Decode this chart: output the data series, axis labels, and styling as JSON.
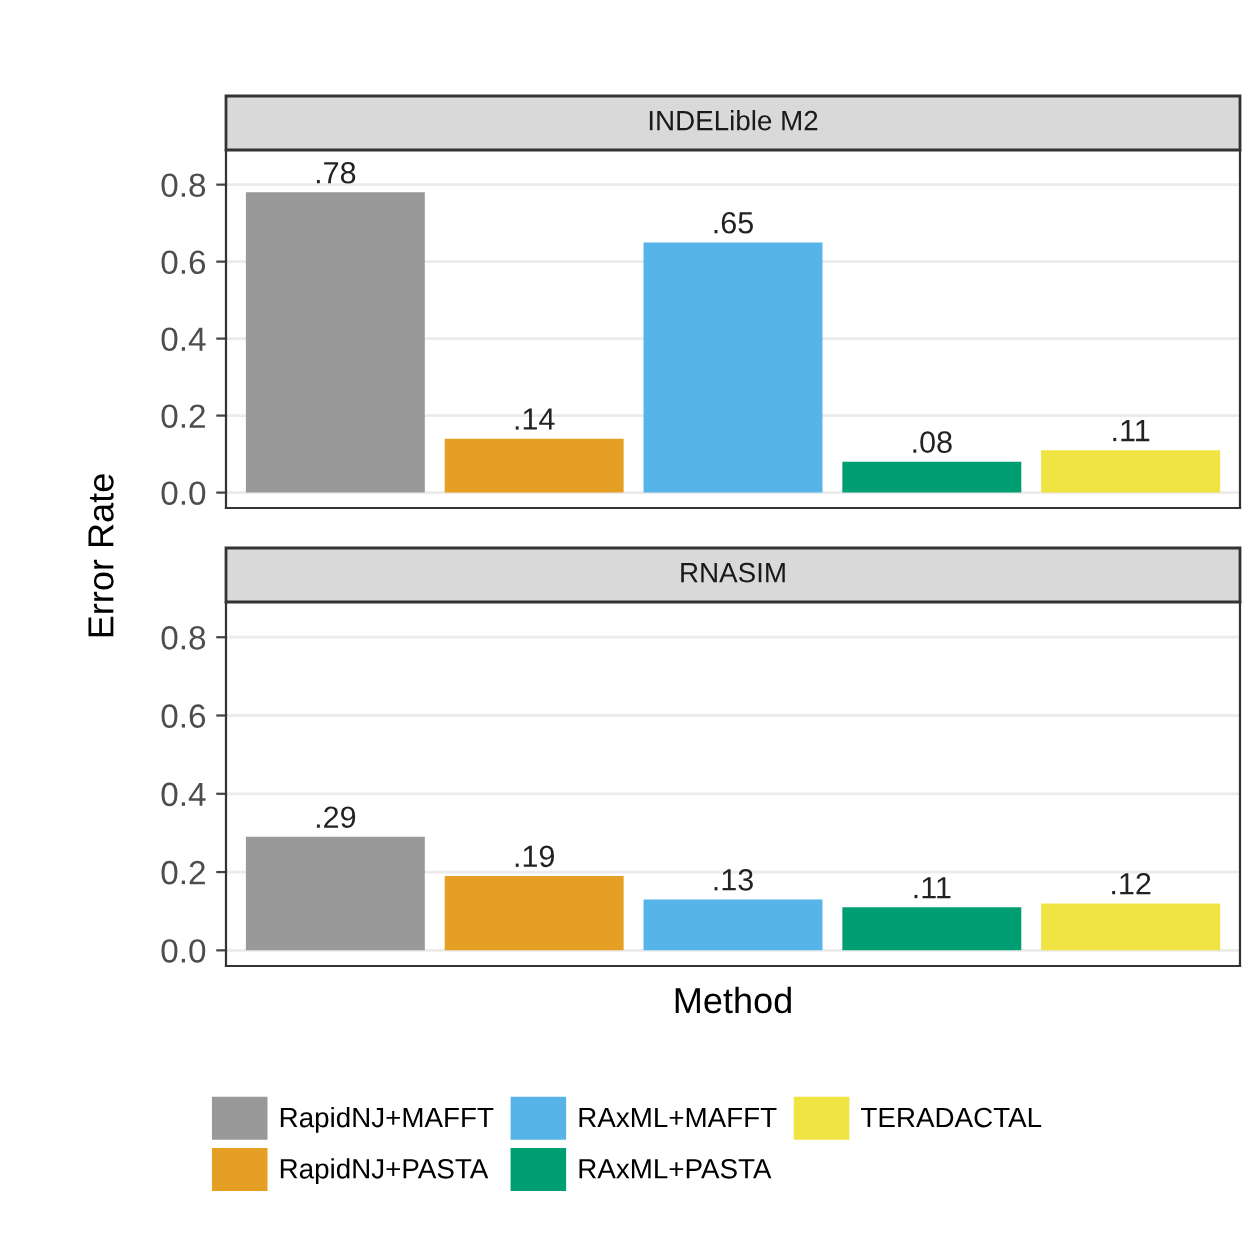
{
  "chart_data": [
    {
      "type": "bar",
      "title": "INDELible M2",
      "ylabel": "Error Rate",
      "categories": [
        null,
        null,
        null,
        null,
        null
      ],
      "series": [
        {
          "color": "#999999",
          "values": [
            0.78,
            null,
            null,
            null,
            null
          ],
          "value_labels": [
            ".78",
            null,
            null,
            null,
            null
          ]
        },
        {
          "color": "#e69f25",
          "values": [
            null,
            0.14,
            null,
            null,
            null
          ],
          "value_labels": [
            null,
            ".14",
            null,
            null,
            null
          ]
        },
        {
          "color": "#56b4e9",
          "values": [
            null,
            null,
            0.65,
            null,
            null
          ],
          "value_labels": [
            null,
            null,
            ".65",
            null,
            null
          ]
        },
        {
          "color": "#009e73",
          "values": [
            null,
            null,
            null,
            0.08,
            null
          ],
          "value_labels": [
            null,
            null,
            null,
            ".08",
            null
          ]
        },
        {
          "color": "#f0e442",
          "values": [
            null,
            null,
            null,
            null,
            0.11
          ],
          "value_labels": [
            null,
            null,
            null,
            null,
            ".11"
          ]
        }
      ],
      "ylim": [
        -0.04,
        0.89
      ],
      "yticks": [
        {
          "value": 0,
          "label": "0.0"
        },
        {
          "value": 0.2,
          "label": "0.2"
        },
        {
          "value": 0.4,
          "label": "0.4"
        },
        {
          "value": 0.6,
          "label": "0.6"
        },
        {
          "value": 0.8,
          "label": "0.8"
        }
      ],
      "grid": "y",
      "legend": false
    },
    {
      "type": "bar",
      "title": "RNASIM",
      "xlabel": "Method",
      "categories": [
        null,
        null,
        null,
        null,
        null
      ],
      "series": [
        {
          "name": "RapidNJ+MAFFT",
          "color": "#999999",
          "values": [
            0.29,
            null,
            null,
            null,
            null
          ],
          "value_labels": [
            ".29",
            null,
            null,
            null,
            null
          ]
        },
        {
          "name": "RapidNJ+PASTA",
          "color": "#e69f25",
          "values": [
            null,
            0.19,
            null,
            null,
            null
          ],
          "value_labels": [
            null,
            ".19",
            null,
            null,
            null
          ]
        },
        {
          "name": "RAxML+MAFFT",
          "color": "#56b4e9",
          "values": [
            null,
            null,
            0.13,
            null,
            null
          ],
          "value_labels": [
            null,
            null,
            ".13",
            null,
            null
          ]
        },
        {
          "name": "RAxML+PASTA",
          "color": "#009e73",
          "values": [
            null,
            null,
            null,
            0.11,
            null
          ],
          "value_labels": [
            null,
            null,
            null,
            ".11",
            null
          ]
        },
        {
          "name": "TERADACTAL",
          "color": "#f0e442",
          "values": [
            null,
            null,
            null,
            null,
            0.12
          ],
          "value_labels": [
            null,
            null,
            null,
            null,
            ".12"
          ]
        }
      ],
      "ylim": [
        -0.04,
        0.89
      ],
      "yticks": [
        {
          "value": 0,
          "label": "0.0"
        },
        {
          "value": 0.2,
          "label": "0.2"
        },
        {
          "value": 0.4,
          "label": "0.4"
        },
        {
          "value": 0.6,
          "label": "0.6"
        },
        {
          "value": 0.8,
          "label": "0.8"
        }
      ],
      "grid": "y",
      "legend": "bottom"
    }
  ]
}
